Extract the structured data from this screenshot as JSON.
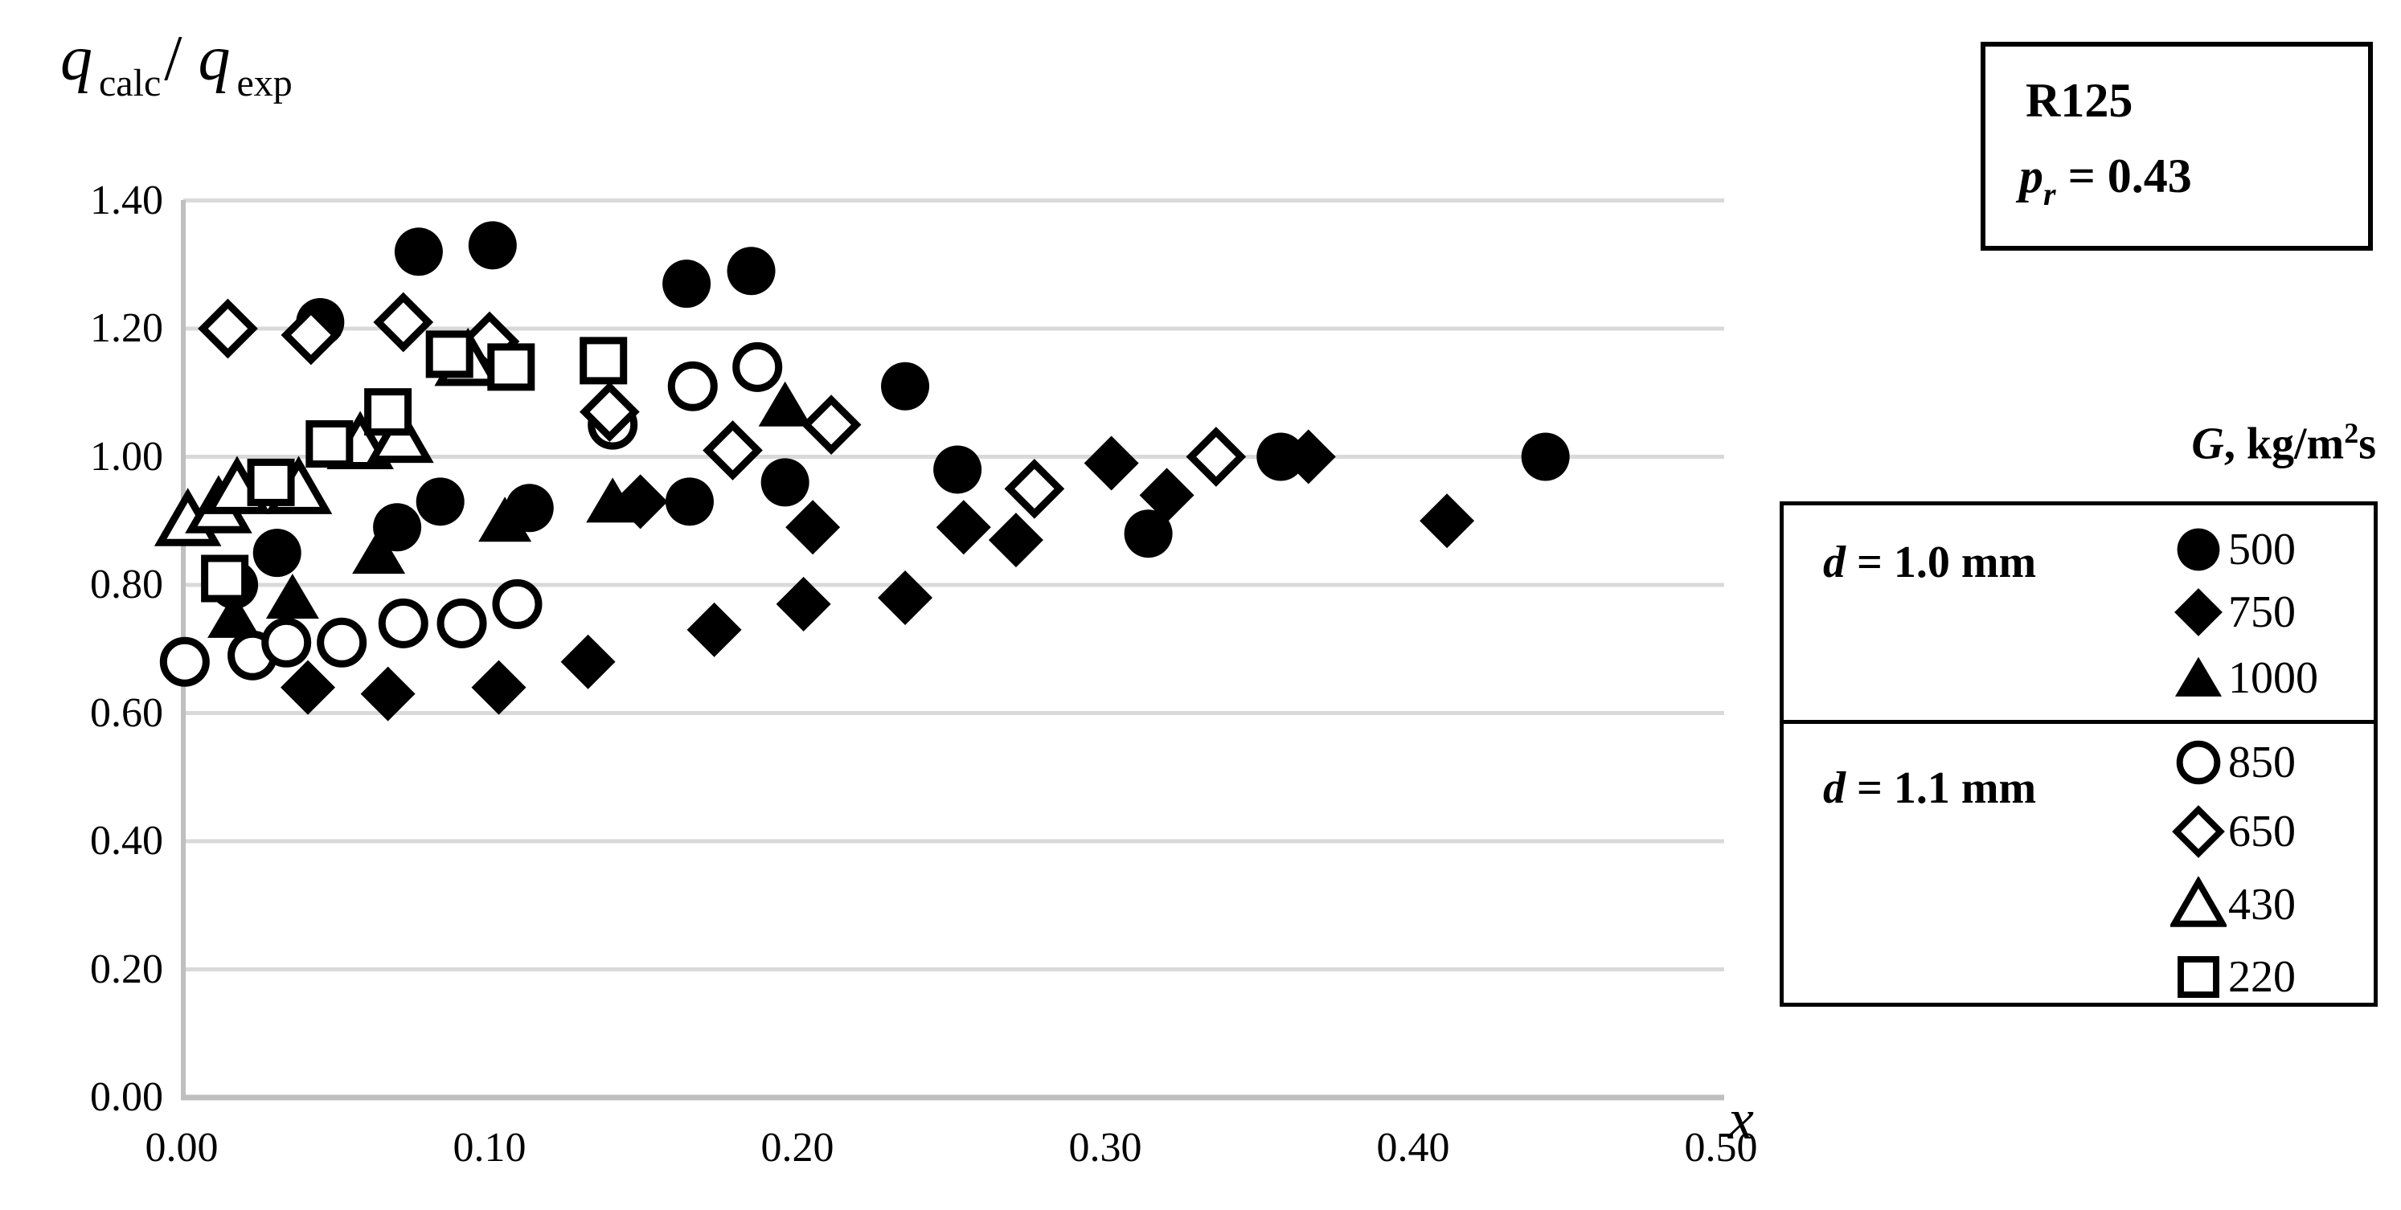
{
  "y_axis_title": {
    "q1": "q",
    "sub1": "calc",
    "slash": "/",
    "q2": "q",
    "sub2": "exp"
  },
  "x_axis_title": "x",
  "annotation": {
    "line1": "R125",
    "p": "p",
    "p_sub": "r",
    "p_eq": " = 0.43"
  },
  "legend": {
    "header_g": "G",
    "header_mid": ", kg/m",
    "header_sup": "2",
    "header_end": "s",
    "groups": [
      {
        "label_d": "d",
        "label_eq": " = 1.0 mm"
      },
      {
        "label_d": "d",
        "label_eq": " = 1.1 mm"
      }
    ]
  },
  "axes": {
    "y_ticks": [
      "0.00",
      "0.20",
      "0.40",
      "0.60",
      "0.80",
      "1.00",
      "1.20",
      "1.40"
    ],
    "y_tick_values": [
      0.0,
      0.2,
      0.4,
      0.6,
      0.8,
      1.0,
      1.2,
      1.4
    ],
    "x_ticks": [
      "0.00",
      "0.10",
      "0.20",
      "0.30",
      "0.40",
      "0.50"
    ],
    "x_tick_values": [
      0.0,
      0.1,
      0.2,
      0.3,
      0.4,
      0.5
    ]
  },
  "chart_data": {
    "type": "scatter",
    "title": "",
    "xlabel": "x",
    "ylabel": "q_calc / q_exp",
    "xlim": [
      0.0,
      0.5
    ],
    "ylim": [
      0.0,
      1.4
    ],
    "grid": "horizontal",
    "gridline_values": [
      0.2,
      0.4,
      0.6,
      0.8,
      1.0,
      1.2,
      1.4
    ],
    "legend_position": "right",
    "series": [
      {
        "name": "500",
        "group": "d = 1.0 mm",
        "marker": "circle",
        "fill": "filled",
        "points": [
          [
            0.017,
            0.8
          ],
          [
            0.031,
            0.85
          ],
          [
            0.045,
            1.21
          ],
          [
            0.07,
            0.89
          ],
          [
            0.077,
            1.32
          ],
          [
            0.084,
            0.93
          ],
          [
            0.101,
            1.33
          ],
          [
            0.113,
            0.92
          ],
          [
            0.164,
            1.27
          ],
          [
            0.165,
            0.93
          ],
          [
            0.185,
            1.29
          ],
          [
            0.196,
            0.96
          ],
          [
            0.235,
            1.11
          ],
          [
            0.252,
            0.98
          ],
          [
            0.314,
            0.88
          ],
          [
            0.357,
            1.0
          ],
          [
            0.443,
            1.0
          ]
        ]
      },
      {
        "name": "750",
        "group": "d = 1.0 mm",
        "marker": "diamond",
        "fill": "filled",
        "points": [
          [
            0.041,
            0.64
          ],
          [
            0.067,
            0.63
          ],
          [
            0.103,
            0.64
          ],
          [
            0.132,
            0.68
          ],
          [
            0.149,
            0.93
          ],
          [
            0.173,
            0.73
          ],
          [
            0.202,
            0.77
          ],
          [
            0.205,
            0.89
          ],
          [
            0.235,
            0.78
          ],
          [
            0.254,
            0.89
          ],
          [
            0.271,
            0.87
          ],
          [
            0.302,
            0.99
          ],
          [
            0.32,
            0.94
          ],
          [
            0.366,
            1.0
          ],
          [
            0.411,
            0.9
          ]
        ]
      },
      {
        "name": "1000",
        "group": "d = 1.0 mm",
        "marker": "triangle",
        "fill": "filled",
        "points": [
          [
            0.017,
            0.75
          ],
          [
            0.036,
            0.78
          ],
          [
            0.064,
            0.85
          ],
          [
            0.105,
            0.9
          ],
          [
            0.14,
            0.93
          ],
          [
            0.196,
            1.08
          ]
        ]
      },
      {
        "name": "850",
        "group": "d = 1.1 mm",
        "marker": "circle",
        "fill": "open",
        "points": [
          [
            0.001,
            0.68
          ],
          [
            0.023,
            0.69
          ],
          [
            0.034,
            0.71
          ],
          [
            0.052,
            0.71
          ],
          [
            0.072,
            0.74
          ],
          [
            0.091,
            0.74
          ],
          [
            0.109,
            0.77
          ],
          [
            0.14,
            1.05
          ],
          [
            0.166,
            1.11
          ],
          [
            0.187,
            1.14
          ]
        ]
      },
      {
        "name": "650",
        "group": "d = 1.1 mm",
        "marker": "diamond",
        "fill": "open",
        "points": [
          [
            0.015,
            1.2
          ],
          [
            0.042,
            1.19
          ],
          [
            0.072,
            1.21
          ],
          [
            0.1,
            1.18
          ],
          [
            0.139,
            1.07
          ],
          [
            0.179,
            1.01
          ],
          [
            0.211,
            1.05
          ],
          [
            0.277,
            0.95
          ],
          [
            0.336,
            1.0
          ]
        ]
      },
      {
        "name": "430",
        "group": "d = 1.1 mm",
        "marker": "triangle",
        "fill": "open",
        "points": [
          [
            0.002,
            0.9
          ],
          [
            0.012,
            0.92
          ],
          [
            0.018,
            0.95
          ],
          [
            0.038,
            0.95
          ],
          [
            0.058,
            1.02
          ],
          [
            0.071,
            1.03
          ],
          [
            0.093,
            1.15
          ]
        ]
      },
      {
        "name": "220",
        "group": "d = 1.1 mm",
        "marker": "square",
        "fill": "open",
        "points": [
          [
            0.014,
            0.81
          ],
          [
            0.029,
            0.96
          ],
          [
            0.048,
            1.02
          ],
          [
            0.067,
            1.07
          ],
          [
            0.087,
            1.16
          ],
          [
            0.107,
            1.14
          ],
          [
            0.137,
            1.15
          ]
        ]
      }
    ]
  },
  "colors": {
    "marker": "#000000",
    "gridline": "#d9d9d9",
    "axis_line": "#bfbfbf",
    "background": "#ffffff",
    "box_border": "#000000"
  }
}
